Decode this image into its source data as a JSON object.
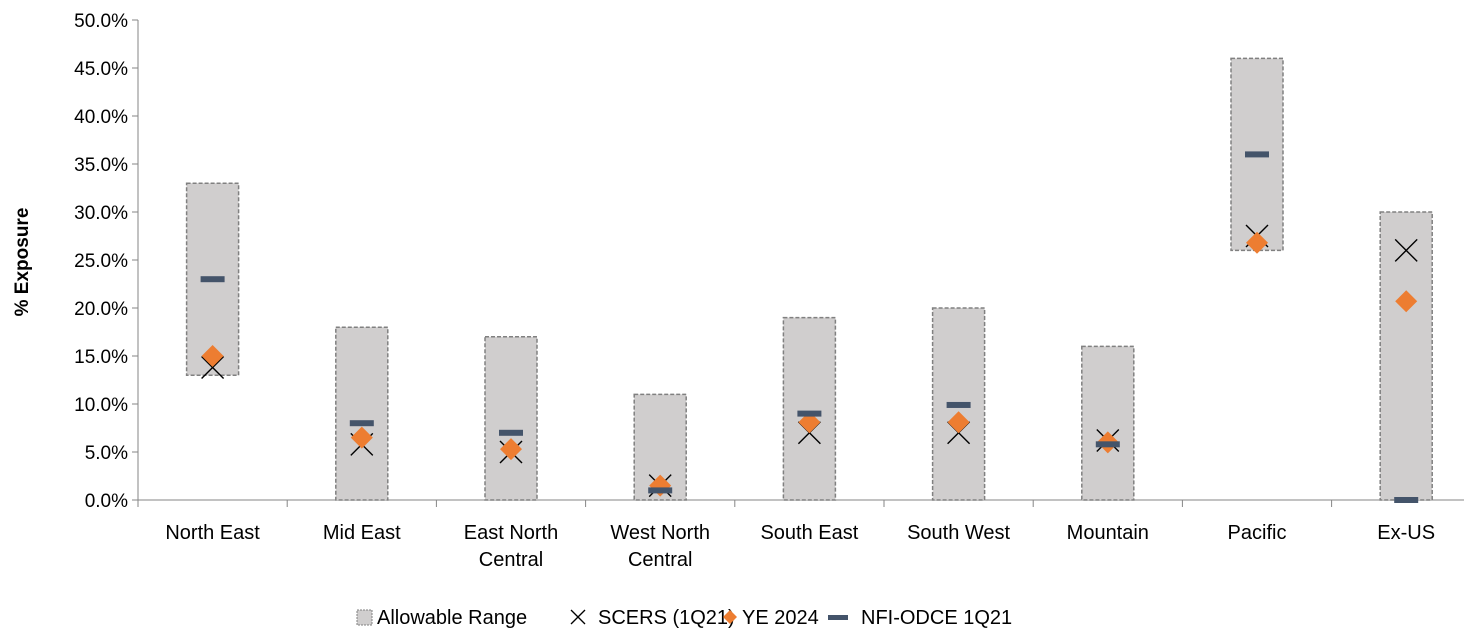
{
  "chart_data": {
    "type": "range-scatter",
    "title": "",
    "xlabel": "",
    "ylabel": "% Exposure",
    "ylim": [
      0,
      50
    ],
    "ytick_step": 5,
    "ytick_labels": [
      "0.0%",
      "5.0%",
      "10.0%",
      "15.0%",
      "20.0%",
      "25.0%",
      "30.0%",
      "35.0%",
      "40.0%",
      "45.0%",
      "50.0%"
    ],
    "categories": [
      [
        "North East"
      ],
      [
        "Mid East"
      ],
      [
        "East North",
        "Central"
      ],
      [
        "West North",
        "Central"
      ],
      [
        "South East"
      ],
      [
        "South West"
      ],
      [
        "Mountain"
      ],
      [
        "Pacific"
      ],
      [
        "Ex-US"
      ]
    ],
    "range": {
      "name": "Allowable Range",
      "low": [
        13,
        0,
        0,
        0,
        0,
        0,
        0,
        26,
        0
      ],
      "high": [
        33,
        18,
        17,
        11,
        19,
        20,
        16,
        46,
        30
      ]
    },
    "series": [
      {
        "name": "SCERS (1Q21)",
        "marker": "x",
        "values": [
          13.8,
          5.8,
          5.0,
          1.5,
          7.0,
          7.0,
          6.2,
          27.5,
          26.0
        ]
      },
      {
        "name": "YE 2024",
        "marker": "diamond",
        "values": [
          15.0,
          6.5,
          5.3,
          1.5,
          8.1,
          8.1,
          6.0,
          26.8,
          20.7
        ]
      },
      {
        "name": "NFI-ODCE 1Q21",
        "marker": "dash",
        "values": [
          23.0,
          8.0,
          7.0,
          1.0,
          9.0,
          9.9,
          5.8,
          36.0,
          0.0
        ]
      }
    ],
    "legend_position": "bottom",
    "grid": false
  },
  "colors": {
    "range_fill": "#d0cece",
    "range_border": "#808080",
    "scers": "#000000",
    "ye2024": "#ed7d31",
    "nfi": "#44546a",
    "axis": "#868686"
  }
}
